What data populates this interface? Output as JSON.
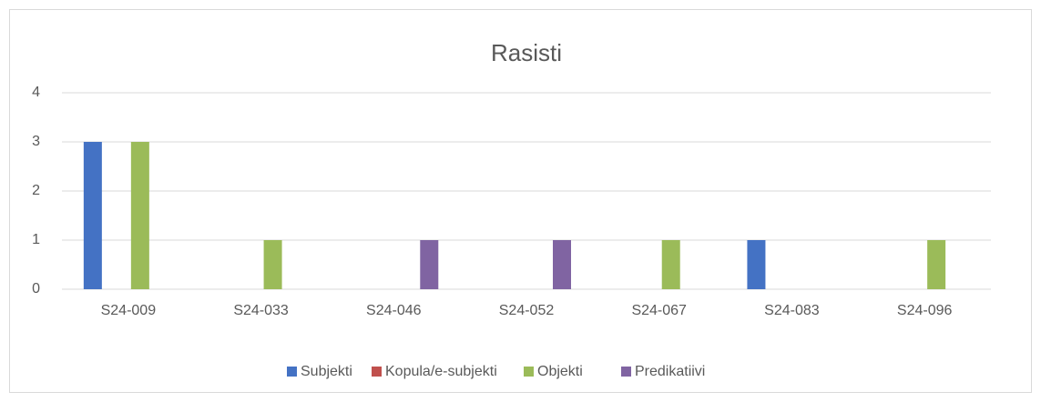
{
  "chart_data": {
    "type": "bar",
    "title": "Rasisti",
    "categories": [
      "S24-009",
      "S24-033",
      "S24-046",
      "S24-052",
      "S24-067",
      "S24-083",
      "S24-096"
    ],
    "series": [
      {
        "name": "Subjekti",
        "color": "#4472c4",
        "values": [
          3,
          0,
          0,
          0,
          0,
          1,
          0
        ]
      },
      {
        "name": "Kopula/e-subjekti",
        "color": "#c0504d",
        "values": [
          0,
          0,
          0,
          0,
          0,
          0,
          0
        ]
      },
      {
        "name": "Objekti",
        "color": "#9bbb59",
        "values": [
          3,
          1,
          0,
          0,
          1,
          0,
          1
        ]
      },
      {
        "name": "Predikatiivi",
        "color": "#8064a2",
        "values": [
          0,
          0,
          1,
          1,
          0,
          0,
          0
        ]
      }
    ],
    "ylim": [
      0,
      4
    ],
    "yticks": [
      0,
      1,
      2,
      3,
      4
    ],
    "grid": true,
    "legend": "bottom"
  }
}
